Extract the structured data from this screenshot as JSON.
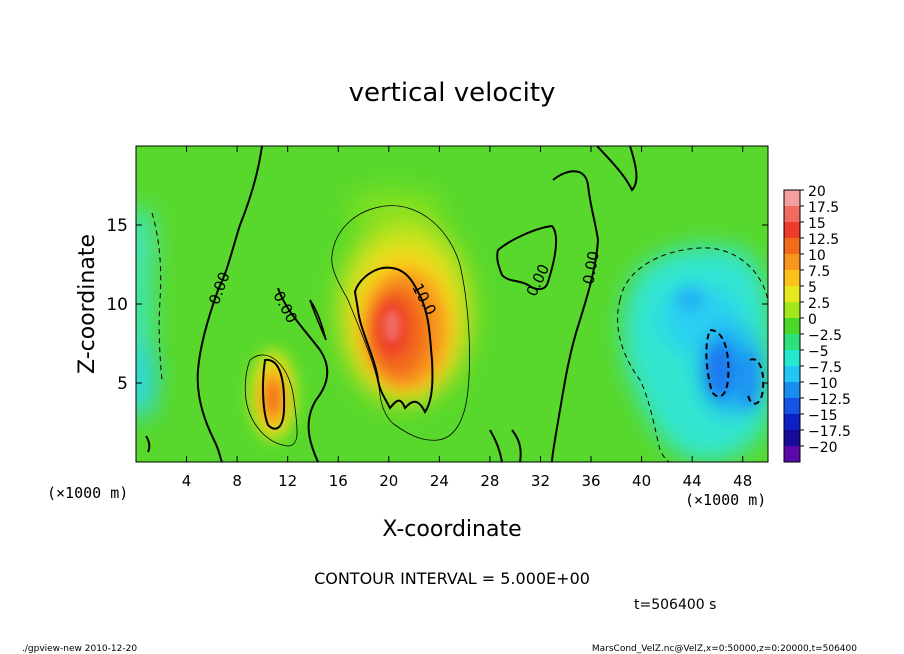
{
  "chart_data": {
    "type": "heatmap",
    "title": "vertical velocity",
    "xlabel": "X-coordinate",
    "ylabel": "Z-coordinate",
    "x_unit_label": "(×1000 m)",
    "y_unit_label": "(×1000 m)",
    "xlim": [
      0,
      50
    ],
    "ylim": [
      0,
      20
    ],
    "x_ticks": [
      4,
      8,
      12,
      16,
      20,
      24,
      28,
      32,
      36,
      40,
      44,
      48
    ],
    "y_ticks": [
      5,
      10,
      15
    ],
    "colorbar": {
      "levels": [
        20,
        17.5,
        15,
        12.5,
        10,
        7.5,
        5,
        2.5,
        0,
        -2.5,
        -5,
        -7.5,
        -10,
        -12.5,
        -15,
        -17.5,
        -20
      ],
      "labels": [
        "20",
        "17.5",
        "15",
        "12.5",
        "10",
        "7.5",
        "5",
        "2.5",
        "0",
        "−2.5",
        "−5",
        "−7.5",
        "−10",
        "−12.5",
        "−15",
        "−17.5",
        "−20"
      ],
      "colors": [
        "#f4a0a0",
        "#f06a60",
        "#ee3a28",
        "#f26a1c",
        "#f8951c",
        "#fcc21c",
        "#e6e81c",
        "#a4e61c",
        "#4cd82a",
        "#2ce07a",
        "#24e8d0",
        "#22c6f4",
        "#1a8ef0",
        "#1652e4",
        "#0c20c6",
        "#1a0a9a",
        "#5a0aa8"
      ]
    },
    "contour_labels": [
      {
        "text": "0.00",
        "x": 6.6,
        "y": 11.0,
        "angle": -70
      },
      {
        "text": "0.00",
        "x": 11.8,
        "y": 9.8,
        "angle": 62
      },
      {
        "text": "10.0",
        "x": 22.8,
        "y": 10.3,
        "angle": 62
      },
      {
        "text": "0.00",
        "x": 31.8,
        "y": 11.5,
        "angle": -65
      },
      {
        "text": "0.00",
        "x": 36.0,
        "y": 12.3,
        "angle": -80
      }
    ],
    "contour_interval_text": "CONTOUR INTERVAL = 5.000E+00",
    "time_text": "t=506400 s"
  },
  "footer": {
    "left": "./gpview-new  2010-12-20",
    "right": "MarsCond_VelZ.nc@VelZ,x=0:50000,z=0:20000,t=506400"
  }
}
